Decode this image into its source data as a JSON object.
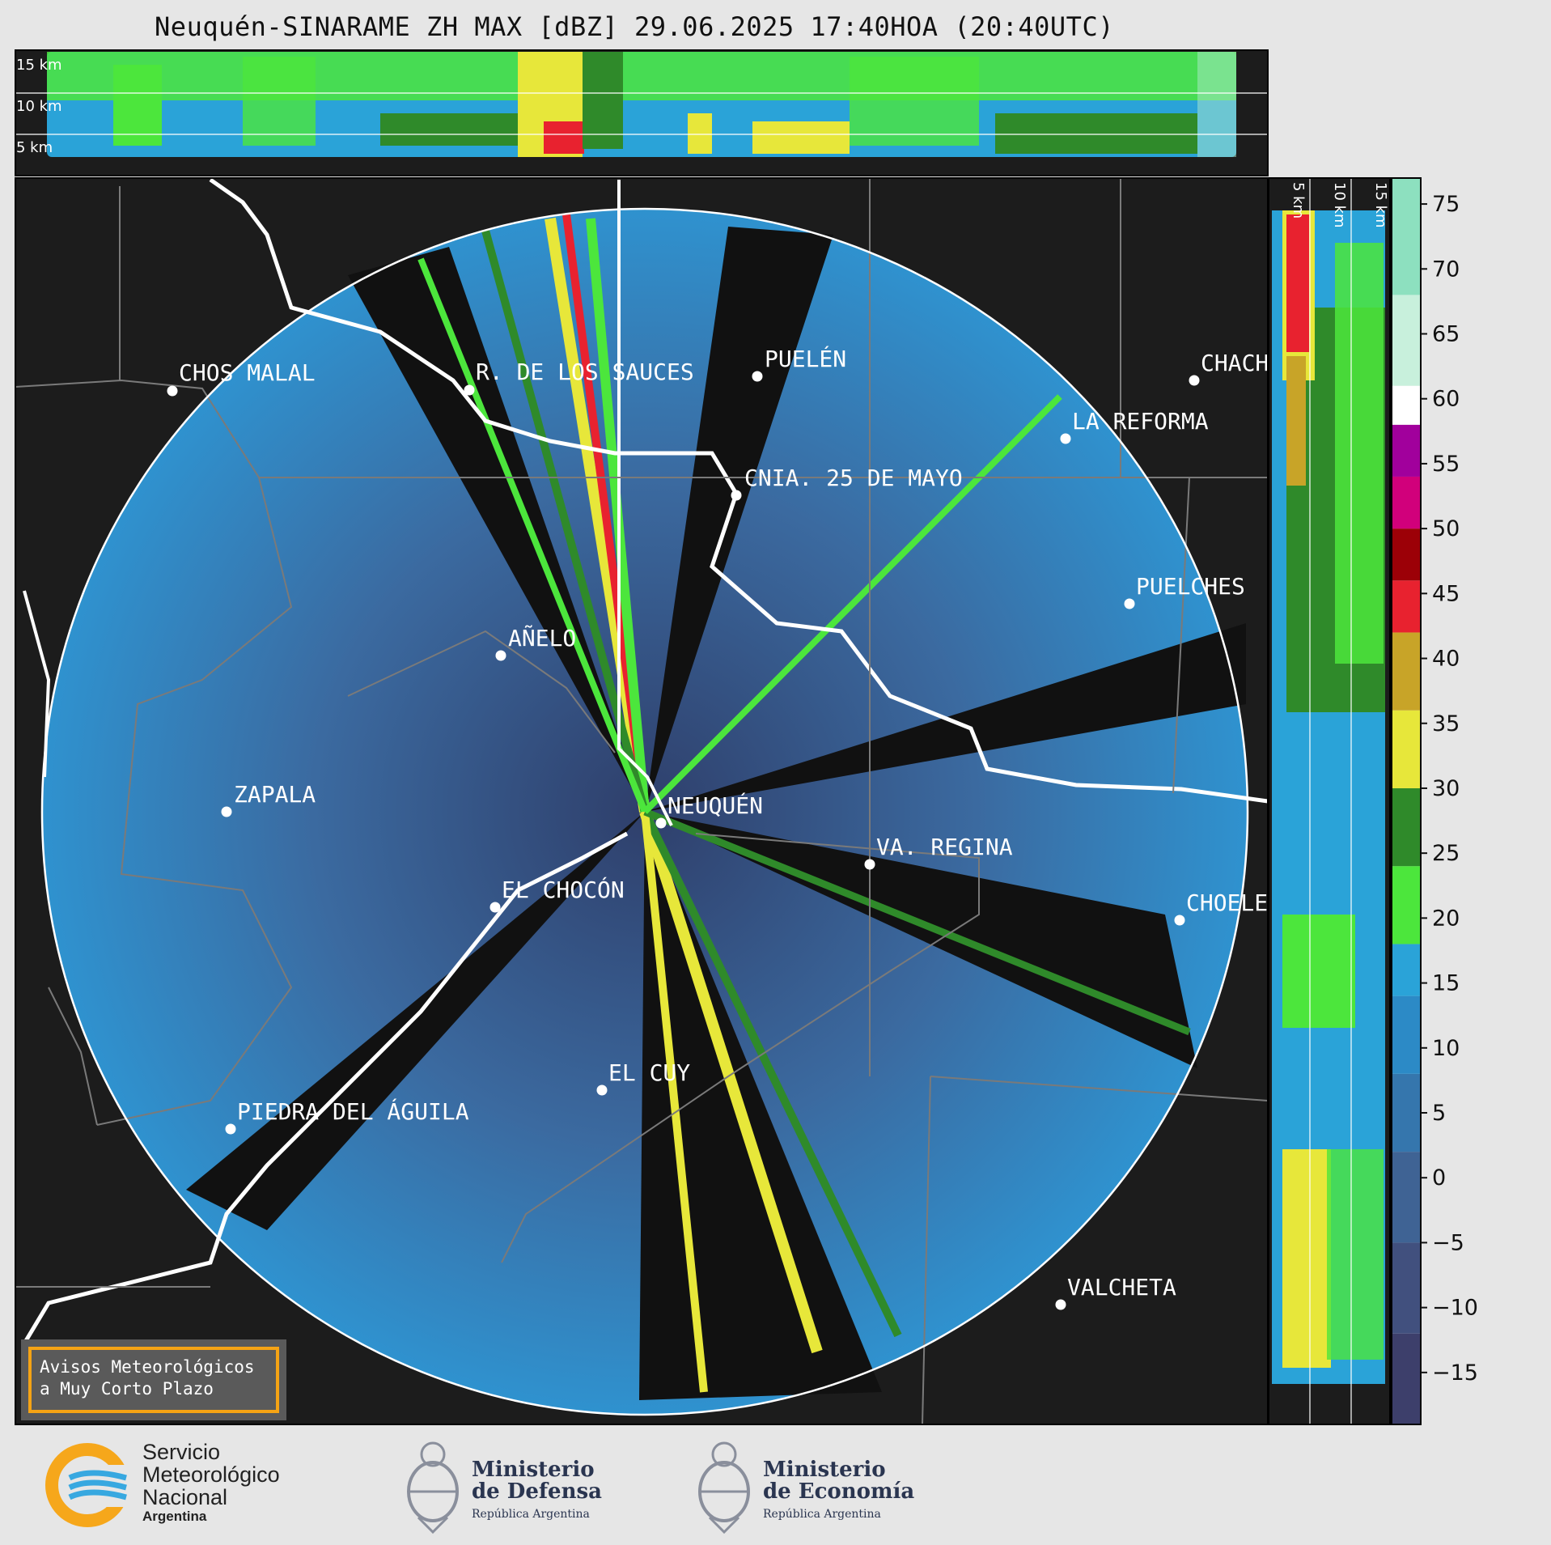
{
  "title": "Neuquén-SINARAME ZH MAX [dBZ] 29.06.2025 17:40HOA (20:40UTC)",
  "top_panel": {
    "height_labels": [
      "15 km",
      "10 km",
      "5 km"
    ]
  },
  "side_panel": {
    "height_labels": [
      "5 km",
      "10 km",
      "15 km"
    ]
  },
  "cities": [
    {
      "id": "chos-malal",
      "label": "CHOS MALAL"
    },
    {
      "id": "rincon-sauces",
      "label": "R. DE LOS SAUCES"
    },
    {
      "id": "puelen",
      "label": "PUELÉN"
    },
    {
      "id": "chacharramendi",
      "label": "CHACH"
    },
    {
      "id": "la-reforma",
      "label": "LA REFORMA"
    },
    {
      "id": "cnia-25-mayo",
      "label": "CNIA. 25 DE MAYO"
    },
    {
      "id": "puelches",
      "label": "PUELCHES"
    },
    {
      "id": "anelo",
      "label": "AÑELO"
    },
    {
      "id": "zapala",
      "label": "ZAPALA"
    },
    {
      "id": "neuquen",
      "label": "NEUQUÉN"
    },
    {
      "id": "va-regina",
      "label": "VA. REGINA"
    },
    {
      "id": "el-chocon",
      "label": "EL CHOCÓN"
    },
    {
      "id": "choele",
      "label": "CHOELE"
    },
    {
      "id": "el-cuy",
      "label": "EL CUY"
    },
    {
      "id": "piedra-aguila",
      "label": "PIEDRA DEL ÁGUILA"
    },
    {
      "id": "valcheta",
      "label": "VALCHETA"
    }
  ],
  "colorbar": {
    "unit": "dBZ",
    "min": -19,
    "max": 77,
    "ticks": [
      "75",
      "70",
      "65",
      "60",
      "55",
      "50",
      "45",
      "40",
      "35",
      "30",
      "25",
      "20",
      "15",
      "10",
      "5",
      "0",
      "−5",
      "−10",
      "−15"
    ],
    "tick_values": [
      75,
      70,
      65,
      60,
      55,
      50,
      45,
      40,
      35,
      30,
      25,
      20,
      15,
      10,
      5,
      0,
      -5,
      -10,
      -15
    ],
    "segments": [
      {
        "from": -19,
        "to": -12,
        "color": "#3d3f6b"
      },
      {
        "from": -12,
        "to": -5,
        "color": "#41507e"
      },
      {
        "from": -5,
        "to": 2,
        "color": "#3f6394"
      },
      {
        "from": 2,
        "to": 8,
        "color": "#3576ad"
      },
      {
        "from": 8,
        "to": 14,
        "color": "#2c8ac6"
      },
      {
        "from": 14,
        "to": 18,
        "color": "#2aa3d8"
      },
      {
        "from": 18,
        "to": 24,
        "color": "#4ce63c"
      },
      {
        "from": 24,
        "to": 30,
        "color": "#2f8a2a"
      },
      {
        "from": 30,
        "to": 36,
        "color": "#e7e73a"
      },
      {
        "from": 36,
        "to": 42,
        "color": "#c8a428"
      },
      {
        "from": 42,
        "to": 46,
        "color": "#e8222f"
      },
      {
        "from": 46,
        "to": 50,
        "color": "#9c0007"
      },
      {
        "from": 50,
        "to": 54,
        "color": "#d1007b"
      },
      {
        "from": 54,
        "to": 58,
        "color": "#a1009c"
      },
      {
        "from": 58,
        "to": 61,
        "color": "#ffffff"
      },
      {
        "from": 61,
        "to": 68,
        "color": "#c8f0dc"
      },
      {
        "from": 68,
        "to": 77,
        "color": "#8de0bf"
      }
    ]
  },
  "aviso": {
    "line1": "Avisos Meteorológicos",
    "line2": "a Muy Corto Plazo"
  },
  "logos": {
    "smn": {
      "l1": "Servicio",
      "l2": "Meteorológico",
      "l3": "Nacional",
      "l4": "Argentina"
    },
    "defensa": {
      "l1": "Ministerio",
      "l2": "de Defensa",
      "sub": "República Argentina"
    },
    "economia": {
      "l1": "Ministerio",
      "l2": "de Economía",
      "sub": "República Argentina"
    }
  }
}
